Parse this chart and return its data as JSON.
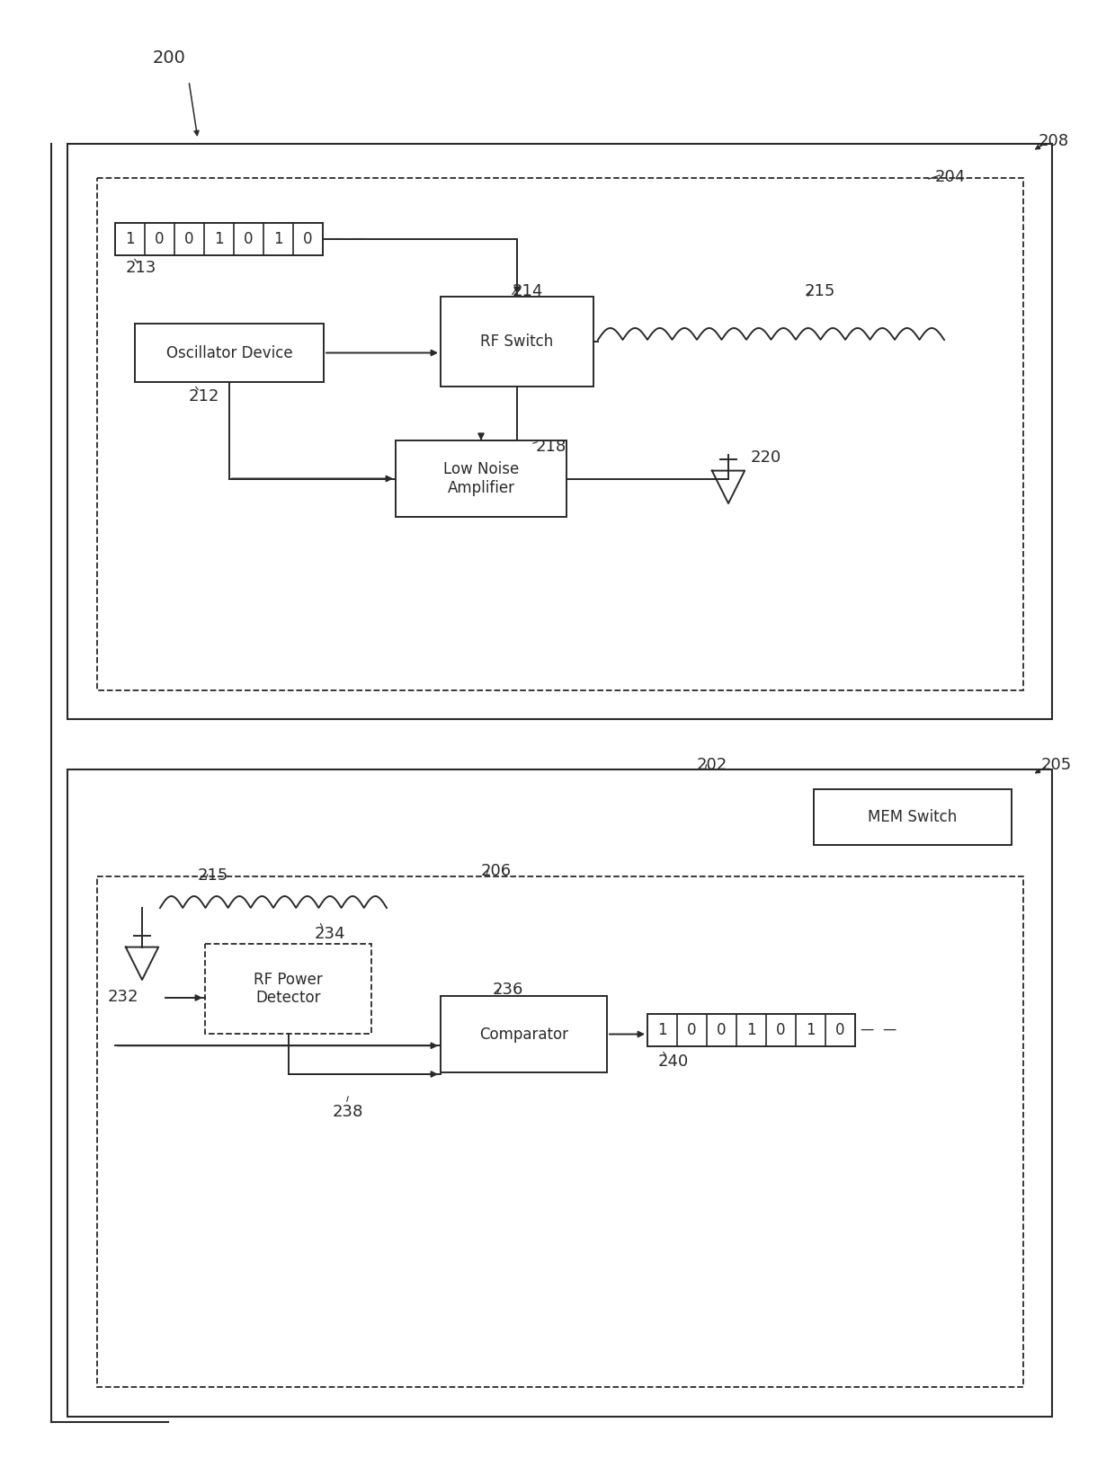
{
  "bg_color": "#ffffff",
  "lc": "#2a2a2a",
  "label_200": "200",
  "label_208": "208",
  "label_204": "204",
  "label_205": "205",
  "label_202": "202",
  "label_206": "206",
  "label_212": "212",
  "label_213": "213",
  "label_214": "214",
  "label_215": "215",
  "label_218": "218",
  "label_220": "220",
  "label_232": "232",
  "label_234": "234",
  "label_236": "236",
  "label_238": "238",
  "label_240": "240",
  "osc_label": "Oscillator Device",
  "rf_switch_label": "RF Switch",
  "lna_label": "Low Noise\nAmplifier",
  "rf_power_label": "RF Power\nDetector",
  "comparator_label": "Comparator",
  "mem_switch_label": "MEM Switch",
  "bits": [
    "1",
    "0",
    "0",
    "1",
    "0",
    "1",
    "0"
  ]
}
